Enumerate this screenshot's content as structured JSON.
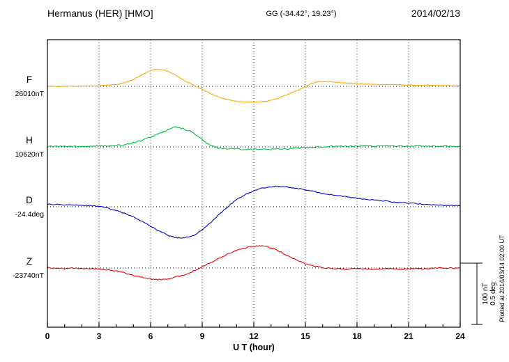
{
  "header": {
    "station": "Hermanus (HER)  [HMO]",
    "coords": "GG (-34.42°,  19.23°)",
    "date": "2014/02/13"
  },
  "axis": {
    "xlabel": "U T (hour)",
    "ticks": [
      0,
      3,
      6,
      9,
      12,
      15,
      18,
      21,
      24
    ],
    "xmin": 0,
    "xmax": 24
  },
  "scale_bar": {
    "labels": [
      "100 nT",
      "0.5 deg"
    ]
  },
  "plotted_at": "Plotted at 2014/03/14 02:00 UT",
  "chart_data": {
    "type": "line",
    "title": "Hermanus (HER) [HMO] magnetogram",
    "subtitle": "GG (-34.42°, 19.23°)",
    "date": "2014/02/13",
    "xlabel": "U T (hour)",
    "x_range": [
      0,
      24
    ],
    "x_ticks": [
      0,
      3,
      6,
      9,
      12,
      15,
      18,
      21,
      24
    ],
    "grid": "dotted vertical at 3h intervals, dotted horizontal baseline per trace",
    "scale_reference": {
      "nT_per_bar": 100,
      "deg_per_bar": 0.5
    },
    "series": [
      {
        "name": "F",
        "label": "F",
        "baseline_label": "26010nT",
        "baseline_value": 26010,
        "unit": "nT",
        "color": "#FFA500",
        "noise": 0.5,
        "points": [
          [
            0,
            0
          ],
          [
            1,
            0
          ],
          [
            2,
            0.5
          ],
          [
            3,
            1
          ],
          [
            4,
            3
          ],
          [
            4.5,
            6
          ],
          [
            5,
            11
          ],
          [
            5.5,
            19
          ],
          [
            6,
            26
          ],
          [
            6.4,
            28
          ],
          [
            6.8,
            27
          ],
          [
            7,
            25
          ],
          [
            7.5,
            18
          ],
          [
            8,
            9
          ],
          [
            8.5,
            2
          ],
          [
            9,
            -5
          ],
          [
            9.5,
            -12
          ],
          [
            10,
            -18
          ],
          [
            10.5,
            -22
          ],
          [
            11,
            -25
          ],
          [
            11.6,
            -26
          ],
          [
            12.2,
            -26
          ],
          [
            12.8,
            -24
          ],
          [
            13.4,
            -20
          ],
          [
            14,
            -13
          ],
          [
            14.6,
            -6
          ],
          [
            15,
            0
          ],
          [
            15.4,
            5
          ],
          [
            15.8,
            8
          ],
          [
            16.4,
            8
          ],
          [
            17,
            6
          ],
          [
            17.6,
            5
          ],
          [
            18.4,
            4
          ],
          [
            19.2,
            3
          ],
          [
            20,
            3
          ],
          [
            21,
            2
          ],
          [
            22,
            2
          ],
          [
            23,
            1
          ],
          [
            24,
            1
          ]
        ]
      },
      {
        "name": "H",
        "label": "H",
        "baseline_label": "10620nT",
        "baseline_value": 10620,
        "unit": "nT",
        "color": "#00C040",
        "noise": 1.2,
        "points": [
          [
            0,
            1
          ],
          [
            0.7,
            1
          ],
          [
            1.4,
            1
          ],
          [
            2,
            1
          ],
          [
            2.7,
            1
          ],
          [
            3.3,
            2
          ],
          [
            4,
            2
          ],
          [
            4.5,
            4
          ],
          [
            5,
            7
          ],
          [
            5.5,
            11
          ],
          [
            6,
            16
          ],
          [
            6.5,
            22
          ],
          [
            7,
            28
          ],
          [
            7.4,
            33
          ],
          [
            7.7,
            31
          ],
          [
            8,
            29
          ],
          [
            8.3,
            26
          ],
          [
            8.6,
            21
          ],
          [
            9,
            12
          ],
          [
            9.3,
            5
          ],
          [
            9.6,
            1
          ],
          [
            10,
            -2
          ],
          [
            10.5,
            -3
          ],
          [
            11,
            -3
          ],
          [
            11.5,
            -4
          ],
          [
            12,
            -4
          ],
          [
            12.5,
            -4
          ],
          [
            13,
            -4
          ],
          [
            13.5,
            -3
          ],
          [
            14,
            -3
          ],
          [
            14.5,
            -2
          ],
          [
            15,
            -1
          ],
          [
            15.5,
            -1
          ],
          [
            16,
            0
          ],
          [
            16.5,
            1
          ],
          [
            17,
            1
          ],
          [
            17.5,
            1
          ],
          [
            18,
            1
          ],
          [
            18.5,
            2
          ],
          [
            19,
            1
          ],
          [
            19.5,
            2
          ],
          [
            20,
            1
          ],
          [
            20.5,
            2
          ],
          [
            21,
            1
          ],
          [
            21.5,
            2
          ],
          [
            22,
            1
          ],
          [
            23,
            1
          ],
          [
            24,
            1
          ]
        ]
      },
      {
        "name": "D",
        "label": "D",
        "baseline_label": "-24.4deg",
        "baseline_value": -24.4,
        "unit": "deg",
        "color": "#0000CC",
        "noise": 0.004,
        "points": [
          [
            0,
            0.02
          ],
          [
            0.5,
            0.02
          ],
          [
            1,
            0.015
          ],
          [
            1.5,
            0.015
          ],
          [
            2,
            0.01
          ],
          [
            2.5,
            0.01
          ],
          [
            3,
            0.005
          ],
          [
            3.5,
            -0.01
          ],
          [
            4,
            -0.03
          ],
          [
            4.5,
            -0.055
          ],
          [
            5,
            -0.085
          ],
          [
            5.5,
            -0.12
          ],
          [
            6,
            -0.16
          ],
          [
            6.5,
            -0.2
          ],
          [
            7,
            -0.235
          ],
          [
            7.4,
            -0.255
          ],
          [
            7.8,
            -0.26
          ],
          [
            8.2,
            -0.25
          ],
          [
            8.6,
            -0.23
          ],
          [
            9,
            -0.19
          ],
          [
            9.5,
            -0.13
          ],
          [
            10,
            -0.06
          ],
          [
            10.5,
            0
          ],
          [
            11,
            0.06
          ],
          [
            11.5,
            0.1
          ],
          [
            12,
            0.13
          ],
          [
            12.5,
            0.155
          ],
          [
            13,
            0.165
          ],
          [
            13.3,
            0.17
          ],
          [
            13.8,
            0.165
          ],
          [
            14.3,
            0.155
          ],
          [
            15,
            0.14
          ],
          [
            15.5,
            0.125
          ],
          [
            16,
            0.11
          ],
          [
            16.5,
            0.1
          ],
          [
            17,
            0.09
          ],
          [
            17.5,
            0.08
          ],
          [
            18,
            0.07
          ],
          [
            18.5,
            0.06
          ],
          [
            19,
            0.055
          ],
          [
            19.5,
            0.05
          ],
          [
            20,
            0.04
          ],
          [
            20.5,
            0.035
          ],
          [
            21,
            0.03
          ],
          [
            21.5,
            0.025
          ],
          [
            22,
            0.02
          ],
          [
            22.5,
            0.015
          ],
          [
            23,
            0.012
          ],
          [
            23.5,
            0.01
          ],
          [
            24,
            0.008
          ]
        ]
      },
      {
        "name": "Z",
        "label": "Z",
        "baseline_label": "-23740nT",
        "baseline_value": -23740,
        "unit": "nT",
        "color": "#EE0000",
        "noise": 1.0,
        "points": [
          [
            0,
            0
          ],
          [
            0.5,
            0
          ],
          [
            1,
            -1
          ],
          [
            1.5,
            0
          ],
          [
            2,
            -1
          ],
          [
            2.5,
            -1
          ],
          [
            3,
            -2
          ],
          [
            3.5,
            -3
          ],
          [
            4,
            -5
          ],
          [
            4.5,
            -8
          ],
          [
            5,
            -12
          ],
          [
            5.5,
            -15
          ],
          [
            6,
            -18
          ],
          [
            6.4,
            -19
          ],
          [
            6.8,
            -19
          ],
          [
            7.2,
            -17
          ],
          [
            7.6,
            -14
          ],
          [
            8,
            -11
          ],
          [
            8.5,
            -5
          ],
          [
            9,
            2
          ],
          [
            9.5,
            9
          ],
          [
            10,
            16
          ],
          [
            10.5,
            23
          ],
          [
            11,
            29
          ],
          [
            11.5,
            33
          ],
          [
            12,
            36
          ],
          [
            12.4,
            37
          ],
          [
            12.8,
            35
          ],
          [
            13.2,
            31
          ],
          [
            13.6,
            26
          ],
          [
            14,
            20
          ],
          [
            14.5,
            13
          ],
          [
            15,
            7
          ],
          [
            15.5,
            3
          ],
          [
            16,
            1
          ],
          [
            16.5,
            -1
          ],
          [
            17,
            -1
          ],
          [
            17.5,
            -2
          ],
          [
            18,
            -1
          ],
          [
            18.5,
            -1
          ],
          [
            19,
            -2
          ],
          [
            19.5,
            -1
          ],
          [
            20,
            -1
          ],
          [
            20.5,
            -2
          ],
          [
            21,
            -1
          ],
          [
            21.5,
            -1
          ],
          [
            22,
            -1
          ],
          [
            22.5,
            0
          ],
          [
            23,
            0
          ],
          [
            23.5,
            0
          ],
          [
            24,
            0
          ]
        ]
      }
    ]
  }
}
